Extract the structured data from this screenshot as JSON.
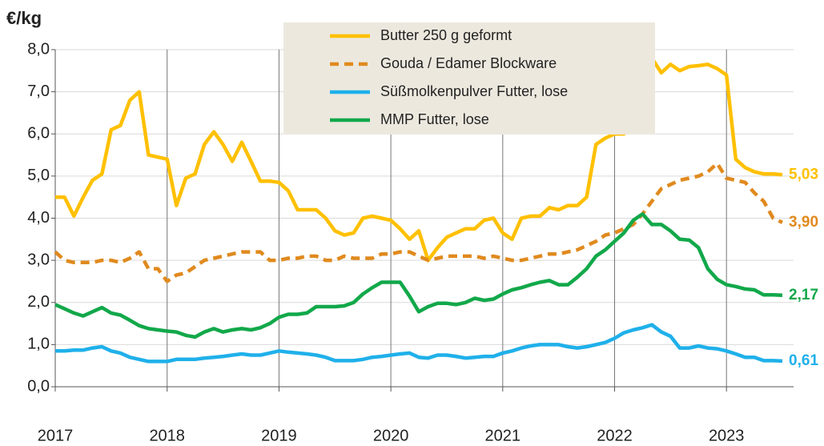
{
  "chart_data": {
    "type": "line",
    "y_label": "€/kg",
    "x": [
      2017,
      2017.083,
      2017.167,
      2017.25,
      2017.333,
      2017.417,
      2017.5,
      2017.583,
      2017.667,
      2017.75,
      2017.833,
      2017.917,
      2018,
      2018.083,
      2018.167,
      2018.25,
      2018.333,
      2018.417,
      2018.5,
      2018.583,
      2018.667,
      2018.75,
      2018.833,
      2018.917,
      2019,
      2019.083,
      2019.167,
      2019.25,
      2019.333,
      2019.417,
      2019.5,
      2019.583,
      2019.667,
      2019.75,
      2019.833,
      2019.917,
      2020,
      2020.083,
      2020.167,
      2020.25,
      2020.333,
      2020.417,
      2020.5,
      2020.583,
      2020.667,
      2020.75,
      2020.833,
      2020.917,
      2021,
      2021.083,
      2021.167,
      2021.25,
      2021.333,
      2021.417,
      2021.5,
      2021.583,
      2021.667,
      2021.75,
      2021.833,
      2021.917,
      2022,
      2022.083,
      2022.167,
      2022.25,
      2022.333,
      2022.417,
      2022.5,
      2022.583,
      2022.667,
      2022.75,
      2022.833,
      2022.917,
      2023,
      2023.083,
      2023.167,
      2023.25,
      2023.333,
      2023.417,
      2023.5
    ],
    "series": [
      {
        "name": "Butter 250 g geformt",
        "color": "#ffc000",
        "dash": false,
        "values": [
          4.5,
          4.5,
          4.05,
          4.5,
          4.9,
          5.05,
          6.1,
          6.2,
          6.8,
          7.0,
          5.5,
          5.45,
          5.4,
          4.3,
          4.95,
          5.05,
          5.75,
          6.05,
          5.75,
          5.35,
          5.8,
          5.35,
          4.88,
          4.88,
          4.85,
          4.65,
          4.2,
          4.2,
          4.2,
          4.0,
          3.7,
          3.6,
          3.65,
          4.0,
          4.05,
          4.0,
          3.95,
          3.75,
          3.5,
          3.7,
          3.0,
          3.3,
          3.55,
          3.65,
          3.75,
          3.75,
          3.95,
          4.0,
          3.65,
          3.5,
          4.0,
          4.05,
          4.05,
          4.25,
          4.2,
          4.3,
          4.3,
          4.5,
          5.75,
          5.9,
          6.0,
          6.0,
          6.3,
          6.9,
          7.8,
          7.45,
          7.65,
          7.5,
          7.6,
          7.62,
          7.65,
          7.55,
          7.4,
          5.4,
          5.2,
          5.1,
          5.05,
          5.05,
          5.03
        ],
        "value_labels": [
          null,
          null,
          null,
          null,
          null,
          null,
          null,
          null,
          null,
          null,
          null,
          null,
          null,
          null,
          null,
          null,
          null,
          null,
          null,
          null,
          null,
          null,
          null,
          null,
          null,
          null,
          null,
          null,
          null,
          null,
          null,
          null,
          null,
          null,
          null,
          null,
          null,
          null,
          null,
          null,
          null,
          null,
          null,
          null,
          null,
          null,
          null,
          null,
          null,
          null,
          null,
          null,
          null,
          null,
          null,
          null,
          null,
          null,
          null,
          null,
          null,
          null,
          null,
          null,
          null,
          null,
          null,
          null,
          null,
          null,
          null,
          null,
          null,
          null,
          null,
          null,
          null,
          null,
          "5,03"
        ]
      },
      {
        "name": "Gouda / Edamer Blockware",
        "color": "#e08a1e",
        "dash": true,
        "values": [
          3.2,
          3.0,
          2.95,
          2.95,
          2.95,
          3.0,
          3.0,
          2.95,
          3.05,
          3.2,
          2.8,
          2.8,
          2.5,
          2.65,
          2.7,
          2.85,
          3.0,
          3.05,
          3.1,
          3.15,
          3.2,
          3.2,
          3.2,
          3.0,
          3.0,
          3.05,
          3.05,
          3.1,
          3.1,
          3.0,
          3.0,
          3.1,
          3.05,
          3.05,
          3.05,
          3.15,
          3.15,
          3.2,
          3.2,
          3.1,
          3.0,
          3.05,
          3.1,
          3.1,
          3.1,
          3.1,
          3.05,
          3.1,
          3.05,
          3.0,
          3.0,
          3.05,
          3.1,
          3.15,
          3.15,
          3.2,
          3.25,
          3.35,
          3.45,
          3.6,
          3.65,
          3.75,
          3.85,
          4.1,
          4.4,
          4.7,
          4.8,
          4.9,
          4.95,
          5.0,
          5.1,
          5.3,
          4.95,
          4.9,
          4.85,
          4.6,
          4.4,
          4.0,
          3.9
        ],
        "value_labels": [
          null,
          null,
          null,
          null,
          null,
          null,
          null,
          null,
          null,
          null,
          null,
          null,
          null,
          null,
          null,
          null,
          null,
          null,
          null,
          null,
          null,
          null,
          null,
          null,
          null,
          null,
          null,
          null,
          null,
          null,
          null,
          null,
          null,
          null,
          null,
          null,
          null,
          null,
          null,
          null,
          null,
          null,
          null,
          null,
          null,
          null,
          null,
          null,
          null,
          null,
          null,
          null,
          null,
          null,
          null,
          null,
          null,
          null,
          null,
          null,
          null,
          null,
          null,
          null,
          null,
          null,
          null,
          null,
          null,
          null,
          null,
          null,
          null,
          null,
          null,
          null,
          null,
          null,
          "3,90"
        ]
      },
      {
        "name": "Süßmolkenpulver Futter, lose",
        "color": "#1fb0ea",
        "dash": false,
        "values": [
          0.85,
          0.85,
          0.87,
          0.87,
          0.92,
          0.95,
          0.85,
          0.8,
          0.7,
          0.65,
          0.6,
          0.6,
          0.6,
          0.65,
          0.65,
          0.65,
          0.68,
          0.7,
          0.72,
          0.75,
          0.78,
          0.75,
          0.75,
          0.8,
          0.85,
          0.82,
          0.8,
          0.78,
          0.75,
          0.7,
          0.62,
          0.62,
          0.62,
          0.65,
          0.7,
          0.72,
          0.75,
          0.78,
          0.8,
          0.7,
          0.68,
          0.75,
          0.75,
          0.72,
          0.68,
          0.7,
          0.72,
          0.72,
          0.8,
          0.85,
          0.92,
          0.97,
          1.0,
          1.0,
          1.0,
          0.95,
          0.92,
          0.95,
          1.0,
          1.05,
          1.15,
          1.28,
          1.35,
          1.4,
          1.47,
          1.3,
          1.2,
          0.92,
          0.92,
          0.97,
          0.92,
          0.9,
          0.85,
          0.78,
          0.7,
          0.7,
          0.62,
          0.62,
          0.61
        ],
        "value_labels": [
          null,
          null,
          null,
          null,
          null,
          null,
          null,
          null,
          null,
          null,
          null,
          null,
          null,
          null,
          null,
          null,
          null,
          null,
          null,
          null,
          null,
          null,
          null,
          null,
          null,
          null,
          null,
          null,
          null,
          null,
          null,
          null,
          null,
          null,
          null,
          null,
          null,
          null,
          null,
          null,
          null,
          null,
          null,
          null,
          null,
          null,
          null,
          null,
          null,
          null,
          null,
          null,
          null,
          null,
          null,
          null,
          null,
          null,
          null,
          null,
          null,
          null,
          null,
          null,
          null,
          null,
          null,
          null,
          null,
          null,
          null,
          null,
          null,
          null,
          null,
          null,
          null,
          null,
          "0,61"
        ]
      },
      {
        "name": "MMP Futter, lose",
        "color": "#12a84a",
        "dash": false,
        "values": [
          1.95,
          1.85,
          1.75,
          1.68,
          1.78,
          1.88,
          1.75,
          1.7,
          1.58,
          1.45,
          1.38,
          1.35,
          1.32,
          1.3,
          1.22,
          1.18,
          1.3,
          1.38,
          1.3,
          1.35,
          1.38,
          1.35,
          1.4,
          1.5,
          1.65,
          1.72,
          1.72,
          1.75,
          1.9,
          1.9,
          1.9,
          1.92,
          2.0,
          2.2,
          2.35,
          2.48,
          2.48,
          2.48,
          2.15,
          1.78,
          1.9,
          1.98,
          1.98,
          1.95,
          2.0,
          2.1,
          2.05,
          2.08,
          2.2,
          2.3,
          2.35,
          2.42,
          2.48,
          2.52,
          2.42,
          2.42,
          2.6,
          2.8,
          3.1,
          3.25,
          3.45,
          3.65,
          3.95,
          4.1,
          3.85,
          3.85,
          3.7,
          3.5,
          3.48,
          3.3,
          2.8,
          2.55,
          2.42,
          2.38,
          2.32,
          2.3,
          2.18,
          2.18,
          2.17
        ],
        "value_labels": [
          null,
          null,
          null,
          null,
          null,
          null,
          null,
          null,
          null,
          null,
          null,
          null,
          null,
          null,
          null,
          null,
          null,
          null,
          null,
          null,
          null,
          null,
          null,
          null,
          null,
          null,
          null,
          null,
          null,
          null,
          null,
          null,
          null,
          null,
          null,
          null,
          null,
          null,
          null,
          null,
          null,
          null,
          null,
          null,
          null,
          null,
          null,
          null,
          null,
          null,
          null,
          null,
          null,
          null,
          null,
          null,
          null,
          null,
          null,
          null,
          null,
          null,
          null,
          null,
          null,
          null,
          null,
          null,
          null,
          null,
          null,
          null,
          null,
          null,
          null,
          null,
          null,
          null,
          "2,17"
        ]
      }
    ],
    "xlim": [
      2017,
      2023.6
    ],
    "xticks": [
      2017,
      2018,
      2019,
      2020,
      2021,
      2022,
      2023
    ],
    "ylim": [
      0,
      8
    ],
    "yticks": [
      {
        "value": 0,
        "label": "0,0"
      },
      {
        "value": 1,
        "label": "1,0"
      },
      {
        "value": 2,
        "label": "2,0"
      },
      {
        "value": 3,
        "label": "3,0"
      },
      {
        "value": 4,
        "label": "4,0"
      },
      {
        "value": 5,
        "label": "5,0"
      },
      {
        "value": 6,
        "label": "6,0"
      },
      {
        "value": 7,
        "label": "7,0"
      },
      {
        "value": 8,
        "label": "8,0"
      }
    ],
    "grid": true,
    "legend": "top"
  }
}
